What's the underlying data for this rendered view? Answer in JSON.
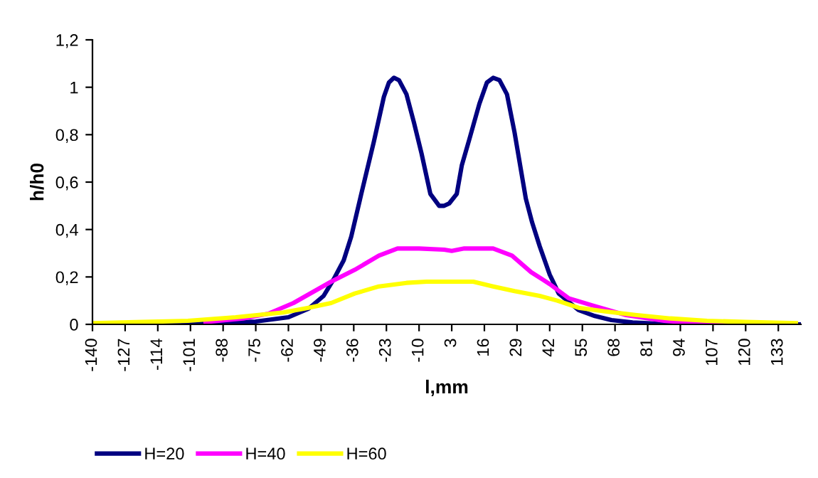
{
  "chart_data": {
    "type": "line",
    "xlabel": "l,mm",
    "ylabel": "h/h0",
    "xlim": [
      -140,
      142
    ],
    "xticks": [
      -140,
      -127,
      -114,
      -101,
      -88,
      -75,
      -62,
      -49,
      -36,
      -23,
      -10,
      3,
      16,
      29,
      42,
      55,
      68,
      81,
      94,
      107,
      120,
      133
    ],
    "ylim": [
      0,
      1.2
    ],
    "yticks": [
      0,
      {
        "value": 0.2,
        "label": "0,2"
      },
      {
        "value": 0.4,
        "label": "0,4"
      },
      {
        "value": 0.6,
        "label": "0,6"
      },
      {
        "value": 0.8,
        "label": "0,8"
      },
      1,
      {
        "value": 1.2,
        "label": "1,2"
      }
    ],
    "grid": false,
    "legend": "bottom",
    "marker": "none",
    "line_style": "solid",
    "series": [
      {
        "name": "H=20",
        "color": "#000080",
        "x": [
          -140,
          -105,
          -90,
          -75,
          -62,
          -54,
          -48,
          -44,
          -40,
          -37,
          -33,
          -28,
          -24,
          -22,
          -20,
          -18,
          -15,
          -12,
          -9,
          -5.5,
          -2,
          0,
          2,
          5,
          7,
          10,
          14,
          17,
          19.5,
          22,
          25,
          28,
          32.5,
          35,
          38,
          42,
          45.6,
          53.5,
          60,
          66.6,
          75,
          85,
          107,
          142
        ],
        "values": [
          0,
          0,
          0.005,
          0.012,
          0.03,
          0.066,
          0.12,
          0.19,
          0.27,
          0.37,
          0.55,
          0.77,
          0.96,
          1.02,
          1.04,
          1.03,
          0.97,
          0.85,
          0.72,
          0.55,
          0.5,
          0.5,
          0.51,
          0.55,
          0.67,
          0.78,
          0.93,
          1.02,
          1.04,
          1.03,
          0.97,
          0.81,
          0.53,
          0.43,
          0.33,
          0.21,
          0.13,
          0.06,
          0.035,
          0.018,
          0.008,
          0.003,
          0,
          0
        ]
      },
      {
        "name": "H=40",
        "color": "#ff00ff",
        "x": [
          -95,
          -80,
          -70,
          -60,
          -50,
          -45,
          -35.6,
          -26,
          -18.6,
          -10,
          0,
          3,
          8,
          15,
          19.5,
          27,
          34.6,
          42,
          49.6,
          59,
          72,
          87.6,
          100,
          120
        ],
        "values": [
          0.01,
          0.025,
          0.045,
          0.09,
          0.15,
          0.18,
          0.23,
          0.29,
          0.32,
          0.32,
          0.315,
          0.31,
          0.32,
          0.32,
          0.32,
          0.29,
          0.22,
          0.17,
          0.11,
          0.08,
          0.04,
          0.015,
          0.005,
          0
        ]
      },
      {
        "name": "H=60",
        "color": "#ffff00",
        "x": [
          -140,
          -120,
          -102,
          -83,
          -64,
          -54,
          -45,
          -35.6,
          -26,
          -15,
          -7,
          0,
          11.6,
          19.5,
          28,
          38,
          45,
          53.5,
          64,
          76,
          90,
          104.6,
          120,
          140
        ],
        "values": [
          0.005,
          0.01,
          0.015,
          0.03,
          0.05,
          0.07,
          0.09,
          0.13,
          0.16,
          0.175,
          0.18,
          0.18,
          0.18,
          0.16,
          0.14,
          0.12,
          0.1,
          0.07,
          0.055,
          0.04,
          0.025,
          0.015,
          0.01,
          0.005
        ]
      }
    ]
  }
}
